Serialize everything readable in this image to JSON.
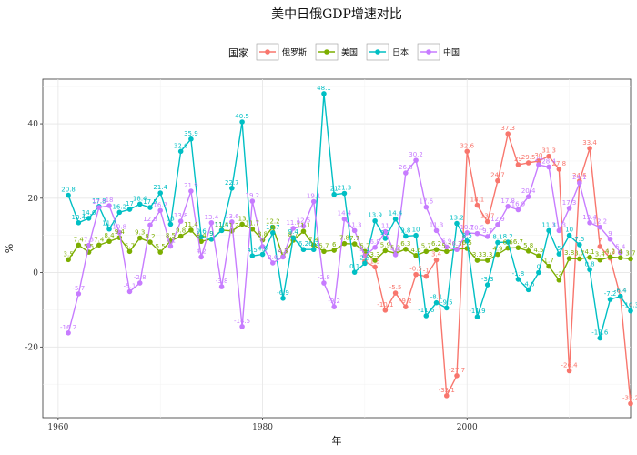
{
  "chart_data": {
    "type": "line",
    "title": "美中日俄GDP增速对比",
    "xlabel": "年",
    "ylabel": "%",
    "xlim": [
      1958.5,
      2016
    ],
    "ylim": [
      -39,
      52
    ],
    "x_ticks": [
      1960,
      1980,
      2000
    ],
    "y_ticks": [
      -20,
      0,
      20,
      40
    ],
    "x_tick_labels": [
      "1960",
      "1980",
      "2000"
    ],
    "y_tick_labels": [
      "-20",
      "0",
      "20",
      "40"
    ],
    "legend_title": "国家",
    "legend_position": "top",
    "grid": true,
    "series": [
      {
        "name": "俄罗斯",
        "color": "#F8766D",
        "points": [
          [
            1990,
            3.0
          ],
          [
            1991,
            1.5
          ],
          [
            1992,
            -10.1
          ],
          [
            1993,
            -5.5
          ],
          [
            1994,
            -9.2
          ],
          [
            1995,
            -0.5
          ],
          [
            1996,
            -1.0
          ],
          [
            1997,
            3.4
          ],
          [
            1998,
            -33.1
          ],
          [
            1999,
            -27.7
          ],
          [
            2000,
            32.6
          ],
          [
            2001,
            18.1
          ],
          [
            2002,
            13.7
          ],
          [
            2003,
            24.7
          ],
          [
            2004,
            37.3
          ],
          [
            2005,
            29.0
          ],
          [
            2006,
            29.5
          ],
          [
            2007,
            30.0
          ],
          [
            2008,
            31.3
          ],
          [
            2009,
            27.8
          ],
          [
            2010,
            -26.4
          ],
          [
            2011,
            24.6
          ],
          [
            2012,
            33.4
          ],
          [
            2013,
            7.0
          ],
          [
            2014,
            3.9
          ],
          [
            2015,
            -6.4
          ],
          [
            2016,
            -35.2
          ]
        ],
        "labels": [
          "3",
          "1.5",
          "-10.1",
          "-5.5",
          "-9.2",
          "-0.5",
          "-1",
          "3.4",
          "-33.1",
          "-27.7",
          "32.6",
          "18.1",
          "13.7",
          "24.7",
          "37.3",
          "29",
          "29.5",
          "30",
          "31.3",
          "27.8",
          "-26.4",
          "24.6",
          "33.4",
          "7",
          "3.9",
          "-6.4",
          "-35.2"
        ]
      },
      {
        "name": "美国",
        "color": "#7CAE00",
        "points": [
          [
            1961,
            3.5
          ],
          [
            1962,
            7.4
          ],
          [
            1963,
            5.5
          ],
          [
            1964,
            7.4
          ],
          [
            1965,
            8.4
          ],
          [
            1966,
            9.4
          ],
          [
            1967,
            5.7
          ],
          [
            1968,
            9.3
          ],
          [
            1969,
            8.2
          ],
          [
            1970,
            5.5
          ],
          [
            1971,
            8.5
          ],
          [
            1972,
            9.8
          ],
          [
            1973,
            11.4
          ],
          [
            1974,
            8.4
          ],
          [
            1975,
            9.0
          ],
          [
            1976,
            11.4
          ],
          [
            1977,
            11.2
          ],
          [
            1978,
            13.0
          ],
          [
            1979,
            11.7
          ],
          [
            1980,
            8.8
          ],
          [
            1981,
            12.2
          ],
          [
            1982,
            4.3
          ],
          [
            1983,
            8.7
          ],
          [
            1984,
            11.1
          ],
          [
            1985,
            7.4
          ],
          [
            1986,
            5.7
          ],
          [
            1987,
            6.0
          ],
          [
            1988,
            7.8
          ],
          [
            1989,
            7.7
          ],
          [
            1990,
            5.7
          ],
          [
            1991,
            3.3
          ],
          [
            1992,
            5.9
          ],
          [
            1993,
            5.2
          ],
          [
            1994,
            6.3
          ],
          [
            1995,
            4.6
          ],
          [
            1996,
            5.7
          ],
          [
            1997,
            6.2
          ],
          [
            1998,
            5.7
          ],
          [
            1999,
            6.3
          ],
          [
            2000,
            6.5
          ],
          [
            2001,
            3.3
          ],
          [
            2002,
            3.3
          ],
          [
            2003,
            4.9
          ],
          [
            2004,
            6.6
          ],
          [
            2005,
            6.7
          ],
          [
            2006,
            5.8
          ],
          [
            2007,
            4.5
          ],
          [
            2008,
            1.7
          ],
          [
            2009,
            -2.0
          ],
          [
            2010,
            3.8
          ],
          [
            2011,
            3.7
          ],
          [
            2012,
            4.1
          ],
          [
            2013,
            3.4
          ],
          [
            2014,
            4.2
          ],
          [
            2015,
            4.0
          ],
          [
            2016,
            3.7
          ]
        ],
        "labels": [
          "3.5",
          "7.4",
          "5.5",
          "7.4",
          "8.4",
          "9.4",
          "5.7",
          "9.3",
          "8.2",
          "5.5",
          "8.5",
          "9.8",
          "11.4",
          "8.4",
          "9",
          "11.4",
          "11.2",
          "13",
          "11.7",
          "8.8",
          "12.2",
          "4.3",
          "8.7",
          "11.1",
          "7.4",
          "5.7",
          "6",
          "7.8",
          "7.7",
          "5.7",
          "3.3",
          "5.9",
          "5.2",
          "6.3",
          "4.6",
          "5.7",
          "6.2",
          "5.7",
          "6.3",
          "6.5",
          "3.3",
          "3.3",
          "4.9",
          "6.6",
          "6.7",
          "5.8",
          "4.5",
          "1.7",
          "-2",
          "3.8",
          "3.7",
          "4.1",
          "3.4",
          "4.2",
          "4",
          "3.7"
        ]
      },
      {
        "name": "日本",
        "color": "#00BFC4",
        "points": [
          [
            1961,
            20.8
          ],
          [
            1962,
            13.4
          ],
          [
            1963,
            14.6
          ],
          [
            1964,
            17.8
          ],
          [
            1965,
            11.7
          ],
          [
            1966,
            16.2
          ],
          [
            1967,
            17.0
          ],
          [
            1968,
            18.4
          ],
          [
            1969,
            17.5
          ],
          [
            1970,
            21.4
          ],
          [
            1971,
            13.0
          ],
          [
            1972,
            32.6
          ],
          [
            1973,
            35.9
          ],
          [
            1974,
            9.6
          ],
          [
            1975,
            9.0
          ],
          [
            1976,
            11.3
          ],
          [
            1977,
            22.7
          ],
          [
            1978,
            40.5
          ],
          [
            1979,
            4.5
          ],
          [
            1980,
            4.9
          ],
          [
            1981,
            10.7
          ],
          [
            1982,
            -6.9
          ],
          [
            1983,
            9.4
          ],
          [
            1984,
            6.2
          ],
          [
            1985,
            6.2
          ],
          [
            1986,
            48.1
          ],
          [
            1987,
            21.0
          ],
          [
            1988,
            21.3
          ],
          [
            1989,
            0.1
          ],
          [
            1990,
            2.5
          ],
          [
            1991,
            13.9
          ],
          [
            1992,
            9.2
          ],
          [
            1993,
            14.4
          ],
          [
            1994,
            9.8
          ],
          [
            1995,
            10.0
          ],
          [
            1996,
            -11.6
          ],
          [
            1997,
            -8.1
          ],
          [
            1998,
            -9.5
          ],
          [
            1999,
            13.2
          ],
          [
            2000,
            8.5
          ],
          [
            2001,
            -11.9
          ],
          [
            2002,
            -3.3
          ],
          [
            2003,
            8.1
          ],
          [
            2004,
            8.2
          ],
          [
            2005,
            -1.8
          ],
          [
            2006,
            -4.6
          ],
          [
            2007,
            0.0
          ],
          [
            2008,
            11.3
          ],
          [
            2009,
            5.0
          ],
          [
            2010,
            10.0
          ],
          [
            2011,
            7.5
          ],
          [
            2012,
            0.8
          ],
          [
            2013,
            -17.6
          ],
          [
            2014,
            -7.2
          ],
          [
            2015,
            -6.4
          ],
          [
            2016,
            -10.3
          ]
        ],
        "labels": [
          "20.8",
          "13.4",
          "14.6",
          "17.8",
          "11.7",
          "16.2",
          "17",
          "18.4",
          "17.5",
          "21.4",
          "13",
          "32.6",
          "35.9",
          "9.6",
          "9",
          "11.3",
          "22.7",
          "40.5",
          "4.5",
          "4.9",
          "10.7",
          "-6.9",
          "9.4",
          "6.2",
          "6.2",
          "48.1",
          "21",
          "21.3",
          "0.1",
          "2.5",
          "13.9",
          "9.2",
          "14.4",
          "9.8",
          "10",
          "-11.6",
          "-8.1",
          "-9.5",
          "13.2",
          "8.5",
          "-11.9",
          "-3.3",
          "8.1",
          "8.2",
          "-1.8",
          "-4.6",
          "0",
          "11.3",
          "5",
          "10",
          "7.5",
          "0.8",
          "-17.6",
          "-7.2",
          "-6.4",
          "-10.3"
        ]
      },
      {
        "name": "中国",
        "color": "#C77CFF",
        "points": [
          [
            1961,
            -16.2
          ],
          [
            1962,
            -5.7
          ],
          [
            1963,
            7.3
          ],
          [
            1964,
            17.5
          ],
          [
            1965,
            18.0
          ],
          [
            1966,
            10.8
          ],
          [
            1967,
            -5.1
          ],
          [
            1968,
            -2.8
          ],
          [
            1969,
            12.8
          ],
          [
            1970,
            16.7
          ],
          [
            1971,
            7.1
          ],
          [
            1972,
            13.8
          ],
          [
            1973,
            21.9
          ],
          [
            1974,
            4.2
          ],
          [
            1975,
            13.4
          ],
          [
            1976,
            -3.8
          ],
          [
            1977,
            13.6
          ],
          [
            1978,
            -14.5
          ],
          [
            1979,
            19.2
          ],
          [
            1980,
            7.0
          ],
          [
            1981,
            2.6
          ],
          [
            1982,
            4.2
          ],
          [
            1983,
            11.9
          ],
          [
            1984,
            12.5
          ],
          [
            1985,
            19.1
          ],
          [
            1986,
            -2.8
          ],
          [
            1987,
            -9.2
          ],
          [
            1988,
            14.4
          ],
          [
            1989,
            11.3
          ],
          [
            1990,
            4.5
          ],
          [
            1991,
            6.8
          ],
          [
            1992,
            11.0
          ],
          [
            1993,
            4.8
          ],
          [
            1994,
            26.8
          ],
          [
            1995,
            30.2
          ],
          [
            1996,
            17.6
          ],
          [
            1997,
            11.3
          ],
          [
            1998,
            6.9
          ],
          [
            1999,
            6.2
          ],
          [
            2000,
            10.7
          ],
          [
            2001,
            10.5
          ],
          [
            2002,
            9.7
          ],
          [
            2003,
            12.9
          ],
          [
            2004,
            17.8
          ],
          [
            2005,
            16.9
          ],
          [
            2006,
            20.4
          ],
          [
            2007,
            29.0
          ],
          [
            2008,
            28.4
          ],
          [
            2009,
            11.3
          ],
          [
            2010,
            17.3
          ],
          [
            2011,
            24.1
          ],
          [
            2012,
            13.4
          ],
          [
            2013,
            12.2
          ],
          [
            2014,
            9.0
          ],
          [
            2015,
            5.4
          ]
        ],
        "labels": [
          "-16.2",
          "-5.7",
          "7.3",
          "17.5",
          "18",
          "10.8",
          "-5.1",
          "-2.8",
          "12.8",
          "16.7",
          "7.1",
          "13.8",
          "21.9",
          "4.2",
          "13.4",
          "-3.8",
          "13.6",
          "-14.5",
          "19.2",
          "7",
          "2.6",
          "4.2",
          "11.9",
          "12.5",
          "19.1",
          "-2.8",
          "-9.2",
          "14.4",
          "11.3",
          "4.5",
          "6.8",
          "11",
          "4.8",
          "26.8",
          "30.2",
          "17.6",
          "11.3",
          "6.9",
          "6.2",
          "10.7",
          "10.5",
          "9.7",
          "12.9",
          "17.8",
          "16.9",
          "20.4",
          "29",
          "28.4",
          "11.3",
          "17.3",
          "24.1",
          "13.4",
          "12.2",
          "9",
          "5.4"
        ]
      }
    ]
  }
}
